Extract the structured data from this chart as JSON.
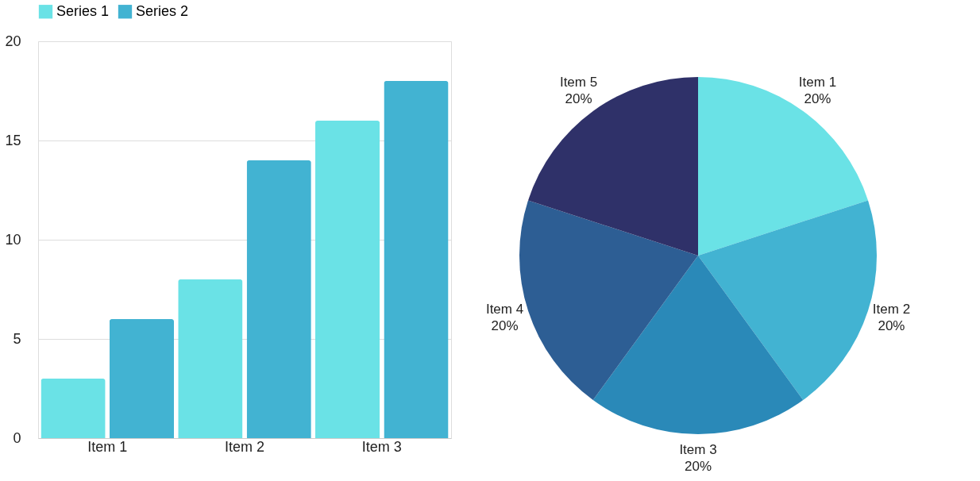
{
  "chart_data": [
    {
      "type": "bar",
      "categories": [
        "Item 1",
        "Item 2",
        "Item 3"
      ],
      "series": [
        {
          "name": "Series 1",
          "color": "#6ae2e6",
          "values": [
            3,
            8,
            16
          ]
        },
        {
          "name": "Series 2",
          "color": "#42b3d2",
          "values": [
            6,
            14,
            18
          ]
        }
      ],
      "ylim": [
        0,
        20
      ],
      "yticks": [
        0,
        5,
        10,
        15,
        20
      ],
      "grid": "y",
      "legend": "top"
    },
    {
      "type": "pie",
      "categories": [
        "Item 1",
        "Item 2",
        "Item 3",
        "Item 4",
        "Item 5"
      ],
      "values": [
        20,
        20,
        20,
        20,
        20
      ],
      "colors": [
        "#6ae2e6",
        "#42b3d2",
        "#2a89b8",
        "#2d5e94",
        "#2f3169"
      ],
      "value_labels": [
        "20%",
        "20%",
        "20%",
        "20%",
        "20%"
      ]
    }
  ]
}
